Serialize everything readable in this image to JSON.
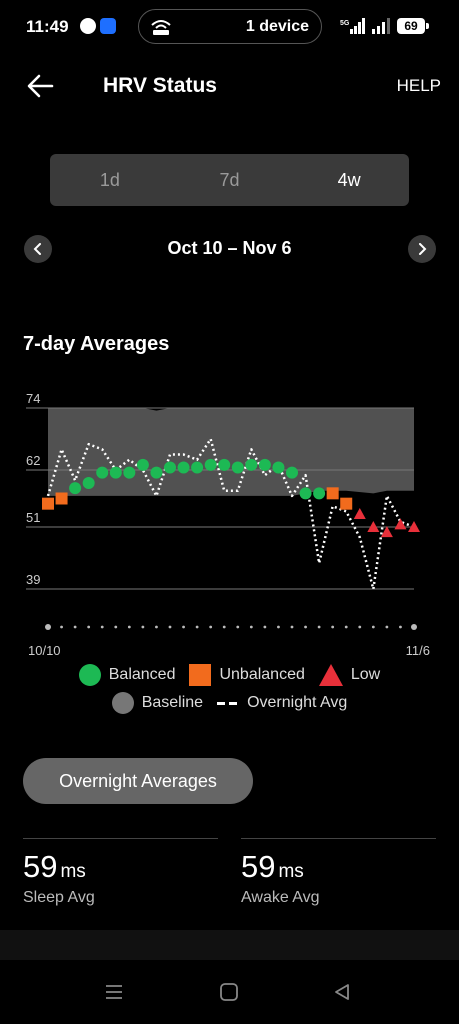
{
  "status_bar": {
    "time": "11:49",
    "device_label": "1 device",
    "network": "5G",
    "battery": "69"
  },
  "header": {
    "title": "HRV Status",
    "help_label": "HELP"
  },
  "range_tabs": [
    {
      "label": "1d",
      "active": false
    },
    {
      "label": "7d",
      "active": false
    },
    {
      "label": "4w",
      "active": true
    }
  ],
  "date_range": "Oct 10 – Nov 6",
  "section_title": "7-day Averages",
  "chart_data": {
    "type": "scatter",
    "title": "",
    "xlabel": "",
    "ylabel": "",
    "y_ticks": [
      74,
      62,
      51,
      39
    ],
    "ylim": [
      35,
      76
    ],
    "x_tick_labels": [
      "10/10",
      "11/6"
    ],
    "baseline_band": [
      {
        "day": 0,
        "low": 57,
        "high": 74
      },
      {
        "day": 7,
        "low": 57,
        "high": 74
      },
      {
        "day": 8,
        "low": 57,
        "high": 73.5
      },
      {
        "day": 9,
        "low": 57,
        "high": 74
      },
      {
        "day": 18,
        "low": 57,
        "high": 74
      },
      {
        "day": 20,
        "low": 58,
        "high": 74
      },
      {
        "day": 22,
        "low": 58,
        "high": 74
      },
      {
        "day": 24,
        "low": 57.5,
        "high": 74
      },
      {
        "day": 25,
        "low": 58,
        "high": 74
      },
      {
        "day": 27,
        "low": 58,
        "high": 74
      }
    ],
    "series": [
      {
        "name": "Balanced",
        "color": "#1db954",
        "marker": "circle",
        "points": [
          {
            "day": 2,
            "value": 58.5
          },
          {
            "day": 3,
            "value": 59.5
          },
          {
            "day": 4,
            "value": 61.5
          },
          {
            "day": 5,
            "value": 61.5
          },
          {
            "day": 6,
            "value": 61.5
          },
          {
            "day": 7,
            "value": 63
          },
          {
            "day": 8,
            "value": 61.5
          },
          {
            "day": 9,
            "value": 62.5
          },
          {
            "day": 10,
            "value": 62.5
          },
          {
            "day": 11,
            "value": 62.5
          },
          {
            "day": 12,
            "value": 63
          },
          {
            "day": 13,
            "value": 63
          },
          {
            "day": 14,
            "value": 62.5
          },
          {
            "day": 15,
            "value": 63
          },
          {
            "day": 16,
            "value": 63
          },
          {
            "day": 17,
            "value": 62.5
          },
          {
            "day": 18,
            "value": 61.5
          },
          {
            "day": 19,
            "value": 57.5
          },
          {
            "day": 20,
            "value": 57.5
          }
        ]
      },
      {
        "name": "Unbalanced",
        "color": "#f26b1d",
        "marker": "square",
        "points": [
          {
            "day": 0,
            "value": 55.5
          },
          {
            "day": 1,
            "value": 56.5
          },
          {
            "day": 21,
            "value": 57.5
          },
          {
            "day": 22,
            "value": 55.5
          }
        ]
      },
      {
        "name": "Low",
        "color": "#e8303a",
        "marker": "triangle",
        "points": [
          {
            "day": 23,
            "value": 53.5
          },
          {
            "day": 24,
            "value": 51
          },
          {
            "day": 25,
            "value": 50
          },
          {
            "day": 26,
            "value": 51.5
          },
          {
            "day": 27,
            "value": 51
          }
        ]
      },
      {
        "name": "Overnight Avg",
        "color": "#ffffff",
        "style": "dotted",
        "points": [
          {
            "day": 0,
            "value": 57
          },
          {
            "day": 1,
            "value": 66
          },
          {
            "day": 2,
            "value": 60
          },
          {
            "day": 3,
            "value": 67
          },
          {
            "day": 4,
            "value": 66
          },
          {
            "day": 5,
            "value": 62
          },
          {
            "day": 6,
            "value": 64
          },
          {
            "day": 7,
            "value": 62
          },
          {
            "day": 8,
            "value": 57
          },
          {
            "day": 9,
            "value": 65
          },
          {
            "day": 10,
            "value": 65
          },
          {
            "day": 11,
            "value": 64
          },
          {
            "day": 12,
            "value": 68
          },
          {
            "day": 13,
            "value": 58
          },
          {
            "day": 14,
            "value": 58
          },
          {
            "day": 15,
            "value": 66
          },
          {
            "day": 16,
            "value": 61
          },
          {
            "day": 17,
            "value": 63
          },
          {
            "day": 18,
            "value": 57
          },
          {
            "day": 19,
            "value": 61
          },
          {
            "day": 20,
            "value": 44
          },
          {
            "day": 21,
            "value": 55
          },
          {
            "day": 22,
            "value": 54
          },
          {
            "day": 23,
            "value": 49
          },
          {
            "day": 24,
            "value": 39
          },
          {
            "day": 25,
            "value": 57
          },
          {
            "day": 26,
            "value": 52
          },
          {
            "day": 27,
            "value": 51
          }
        ]
      }
    ],
    "legend": [
      {
        "label": "Balanced",
        "color": "#1db954",
        "shape": "circle"
      },
      {
        "label": "Unbalanced",
        "color": "#f26b1d",
        "shape": "square"
      },
      {
        "label": "Low",
        "color": "#e8303a",
        "shape": "triangle"
      },
      {
        "label": "Baseline",
        "color": "#777777",
        "shape": "circle"
      },
      {
        "label": "Overnight Avg",
        "color": "#ffffff",
        "shape": "dash"
      }
    ],
    "grid": true,
    "legend_position": "bottom"
  },
  "overnight_button": "Overnight Averages",
  "stats": [
    {
      "value": "59",
      "unit": "ms",
      "label": "Sleep Avg"
    },
    {
      "value": "59",
      "unit": "ms",
      "label": "Awake Avg"
    }
  ]
}
